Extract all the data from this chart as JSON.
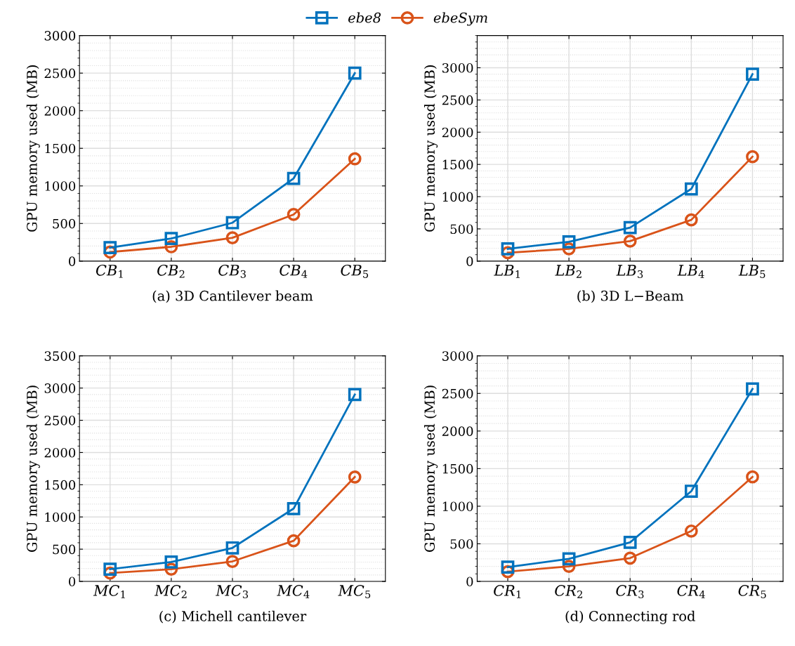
{
  "chart_data": [
    {
      "type": "line",
      "xlabel": "(a) 3D Cantilever beam",
      "ylabel": "GPU memory used (MB)",
      "categories": [
        "CB$_{1}$",
        "CB$_{2}$",
        "CB$_{3}$",
        "CB$_{4}$",
        "CB$_{5}$"
      ],
      "ylim": [
        0,
        3000
      ],
      "yticks": [
        0,
        500,
        1000,
        1500,
        2000,
        2500,
        3000
      ],
      "grid": true,
      "legend": "top",
      "line_style": "solid",
      "series": [
        {
          "name": "ebe8",
          "color": "#0072bd",
          "marker": "square",
          "values": [
            180,
            300,
            510,
            1100,
            2500
          ]
        },
        {
          "name": "ebeSym",
          "color": "#d95319",
          "marker": "circle",
          "values": [
            120,
            190,
            310,
            620,
            1360
          ]
        }
      ]
    },
    {
      "type": "line",
      "xlabel": "(b) 3D L−Beam",
      "ylabel": "GPU memory used (MB)",
      "categories": [
        "LB$_{1}$",
        "LB$_{2}$",
        "LB$_{3}$",
        "LB$_{4}$",
        "LB$_{5}$"
      ],
      "ylim": [
        0,
        3500
      ],
      "yticks": [
        0,
        500,
        1000,
        1500,
        2000,
        2500,
        3000
      ],
      "grid": true,
      "line_style": "solid",
      "series": [
        {
          "color": "#0072bd",
          "marker": "square",
          "values": [
            190,
            300,
            520,
            1120,
            2900
          ]
        },
        {
          "color": "#d95319",
          "marker": "circle",
          "values": [
            130,
            190,
            310,
            640,
            1620
          ]
        }
      ]
    },
    {
      "type": "line",
      "xlabel": "(c) Michell cantilever",
      "ylabel": "GPU memory used (MB)",
      "categories": [
        "MC$_{1}$",
        "MC$_{2}$",
        "MC$_{3}$",
        "MC$_{4}$",
        "MC$_{5}$"
      ],
      "ylim": [
        0,
        3500
      ],
      "yticks": [
        0,
        500,
        1000,
        1500,
        2000,
        2500,
        3000,
        3500
      ],
      "grid": true,
      "line_style": "solid",
      "series": [
        {
          "color": "#0072bd",
          "marker": "square",
          "values": [
            190,
            300,
            520,
            1130,
            2900
          ]
        },
        {
          "color": "#d95319",
          "marker": "circle",
          "values": [
            130,
            190,
            310,
            630,
            1620
          ]
        }
      ]
    },
    {
      "type": "line",
      "xlabel": "(d) Connecting rod",
      "ylabel": "GPU memory used (MB)",
      "categories": [
        "CR$_{1}$",
        "CR$_{2}$",
        "CR$_{3}$",
        "CR$_{4}$",
        "CR$_{5}$"
      ],
      "ylim": [
        0,
        3000
      ],
      "yticks": [
        0,
        500,
        1000,
        1500,
        2000,
        2500,
        3000
      ],
      "grid": true,
      "line_style": "solid",
      "series": [
        {
          "color": "#0072bd",
          "marker": "square",
          "values": [
            190,
            300,
            520,
            1200,
            2560
          ]
        },
        {
          "color": "#d95319",
          "marker": "circle",
          "values": [
            130,
            200,
            310,
            670,
            1390
          ]
        }
      ]
    }
  ]
}
